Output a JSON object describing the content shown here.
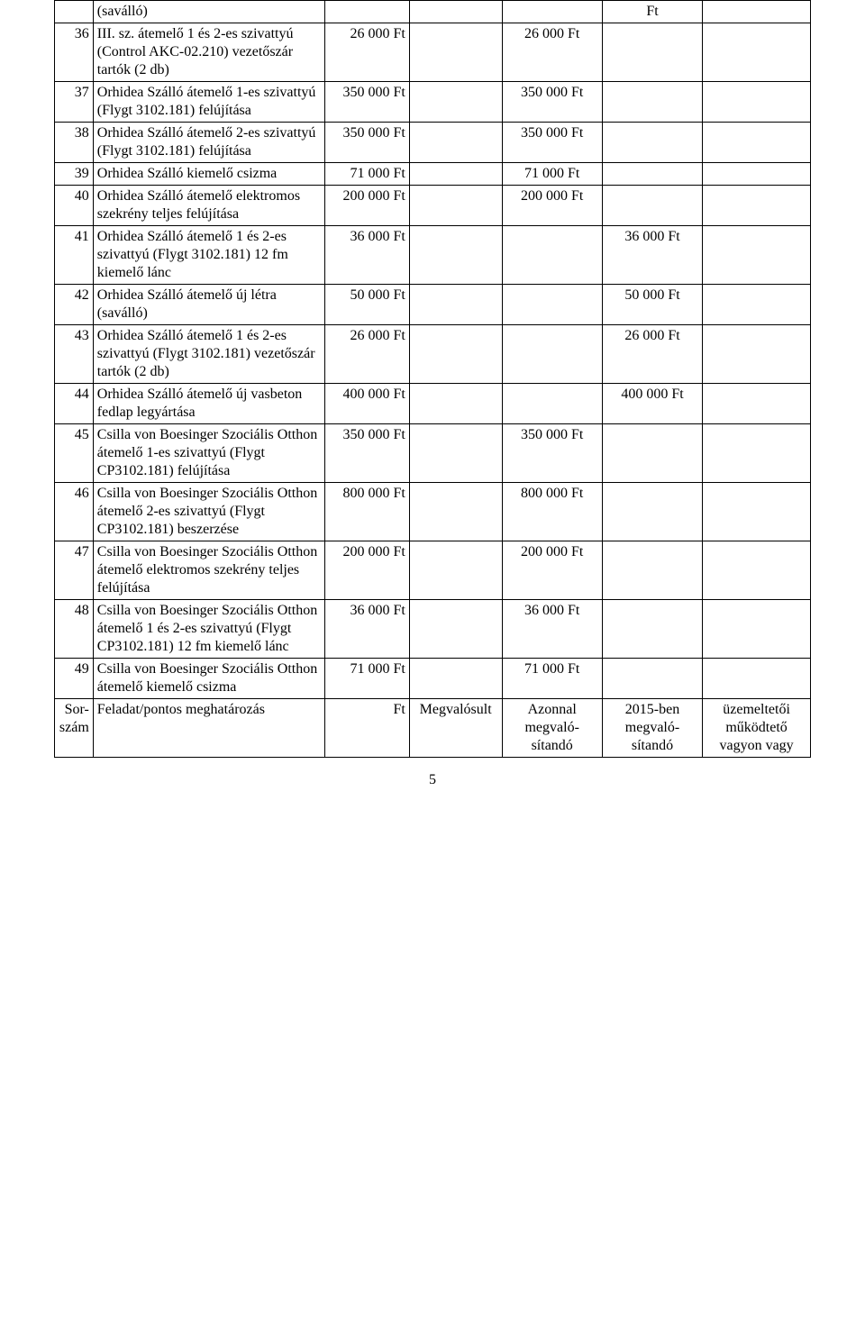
{
  "page_number": "5",
  "rows": [
    {
      "num": "",
      "desc": "(saválló)",
      "c1": "",
      "c2": "",
      "c3": "",
      "c4": "Ft",
      "c5": ""
    },
    {
      "num": "36",
      "desc": "III. sz. átemelő 1 és 2-es szivattyú (Control AKC-02.210) vezetőszár tartók (2 db)",
      "c1": "26 000 Ft",
      "c2": "",
      "c3": "26 000 Ft",
      "c4": "",
      "c5": ""
    },
    {
      "num": "37",
      "desc": "Orhidea Szálló átemelő 1-es szivattyú (Flygt 3102.181) felújítása",
      "c1": "350 000 Ft",
      "c2": "",
      "c3": "350 000 Ft",
      "c4": "",
      "c5": ""
    },
    {
      "num": "38",
      "desc": "Orhidea Szálló átemelő 2-es szivattyú (Flygt 3102.181) felújítása",
      "c1": "350 000 Ft",
      "c2": "",
      "c3": "350 000 Ft",
      "c4": "",
      "c5": ""
    },
    {
      "num": "39",
      "desc": "Orhidea Szálló kiemelő csizma",
      "c1": "71 000 Ft",
      "c2": "",
      "c3": "71 000 Ft",
      "c4": "",
      "c5": ""
    },
    {
      "num": "40",
      "desc": "Orhidea Szálló átemelő elektromos szekrény teljes felújítása",
      "c1": "200 000 Ft",
      "c2": "",
      "c3": "200 000 Ft",
      "c4": "",
      "c5": ""
    },
    {
      "num": "41",
      "desc": "Orhidea Szálló átemelő 1 és 2-es szivattyú (Flygt 3102.181) 12 fm kiemelő lánc",
      "c1": "36 000 Ft",
      "c2": "",
      "c3": "",
      "c4": "36 000 Ft",
      "c5": ""
    },
    {
      "num": "42",
      "desc": "Orhidea Szálló átemelő új létra (saválló)",
      "c1": "50 000 Ft",
      "c2": "",
      "c3": "",
      "c4": "50 000 Ft",
      "c5": ""
    },
    {
      "num": "43",
      "desc": "Orhidea Szálló átemelő 1 és 2-es szivattyú (Flygt 3102.181) vezetőszár tartók (2 db)",
      "c1": "26 000 Ft",
      "c2": "",
      "c3": "",
      "c4": "26 000 Ft",
      "c5": ""
    },
    {
      "num": "44",
      "desc": "Orhidea Szálló átemelő új vasbeton fedlap legyártása",
      "c1": "400 000 Ft",
      "c2": "",
      "c3": "",
      "c4": "400 000 Ft",
      "c5": ""
    },
    {
      "num": "45",
      "desc": "Csilla von Boesinger Szociális Otthon átemelő 1-es szivattyú (Flygt CP3102.181) felújítása",
      "c1": "350 000 Ft",
      "c2": "",
      "c3": "350 000 Ft",
      "c4": "",
      "c5": ""
    },
    {
      "num": "46",
      "desc": "Csilla von Boesinger Szociális Otthon átemelő 2-es szivattyú (Flygt CP3102.181) beszerzése",
      "c1": "800 000 Ft",
      "c2": "",
      "c3": "800 000 Ft",
      "c4": "",
      "c5": ""
    },
    {
      "num": "47",
      "desc": "Csilla von Boesinger Szociális Otthon átemelő elektromos szekrény teljes felújítása",
      "c1": "200 000 Ft",
      "c2": "",
      "c3": "200 000 Ft",
      "c4": "",
      "c5": ""
    },
    {
      "num": "48",
      "desc": "Csilla von Boesinger Szociális Otthon átemelő 1 és 2-es szivattyú (Flygt CP3102.181) 12 fm kiemelő lánc",
      "c1": "36 000 Ft",
      "c2": "",
      "c3": "36 000 Ft",
      "c4": "",
      "c5": ""
    },
    {
      "num": "49",
      "desc": "Csilla von Boesinger Szociális Otthon átemelő kiemelő csizma",
      "c1": "71 000 Ft",
      "c2": "",
      "c3": "71 000 Ft",
      "c4": "",
      "c5": ""
    },
    {
      "num": "Sor-szám",
      "desc": "Feladat/pontos meghatározás",
      "c1": "Ft",
      "c2": "Megvalósult",
      "c3": "Azonnal megvaló-sítandó",
      "c4": "2015-ben megvaló-sítandó",
      "c5": "üzemeltetői működtető vagyon vagy"
    }
  ]
}
